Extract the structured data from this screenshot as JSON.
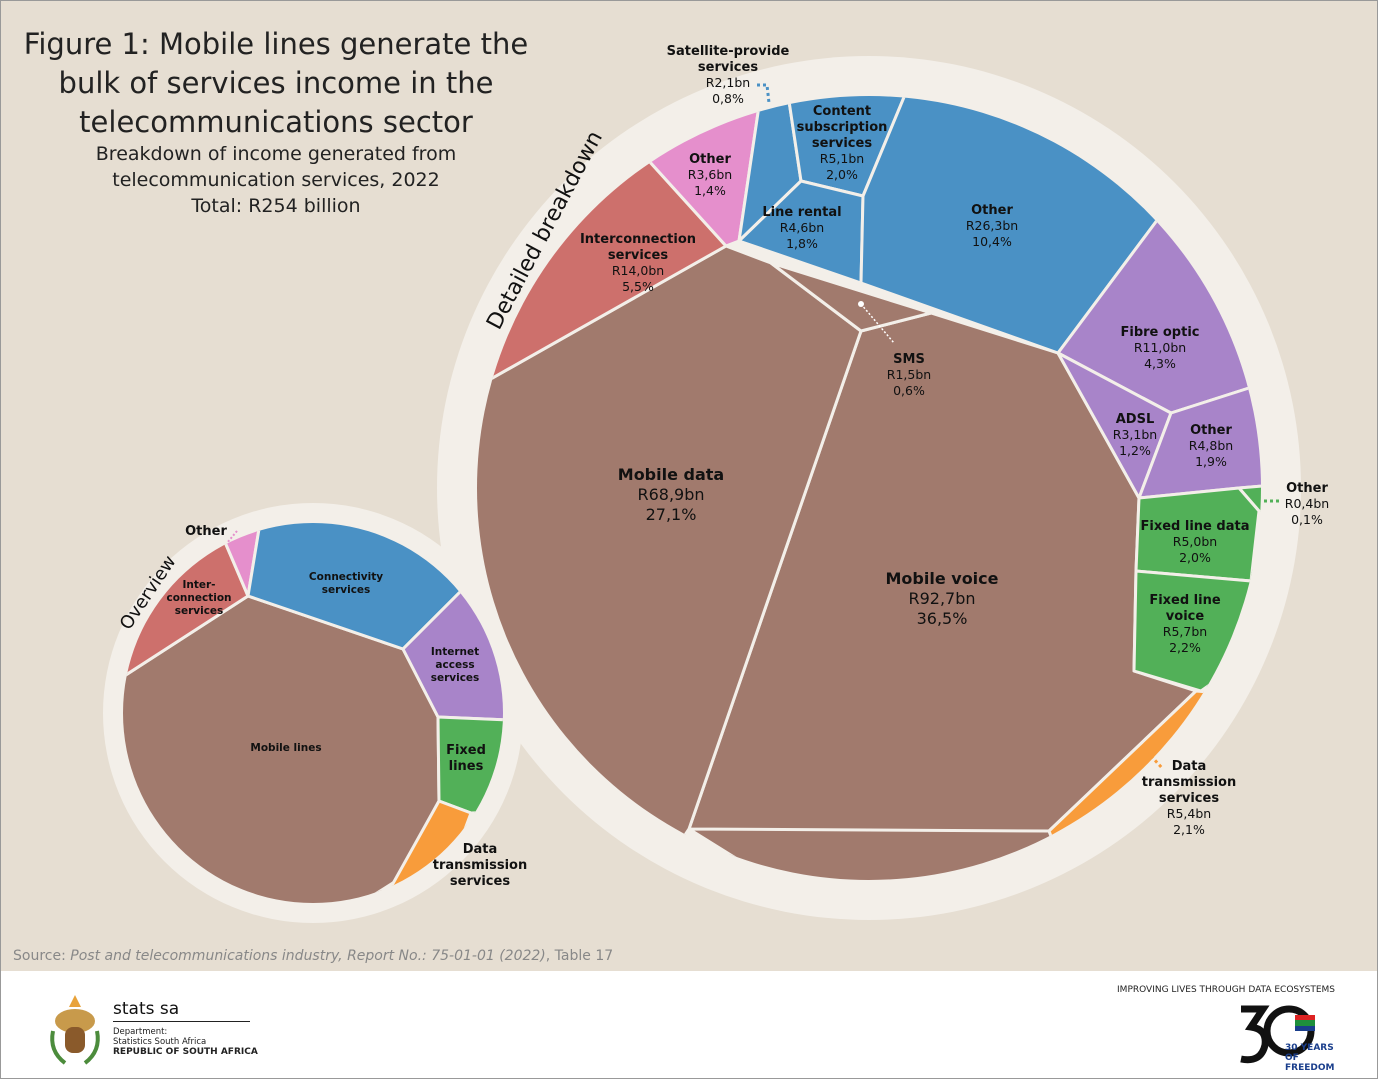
{
  "title": "Figure 1: Mobile lines generate the bulk of services income in the telecommunications sector",
  "title_lines": [
    "Figure 1: Mobile lines generate the",
    "bulk of services income in the",
    "telecommunications sector"
  ],
  "subtitle_lines": [
    "Breakdown of income generated from",
    "telecommunication services, 2022",
    "Total: R254 billion"
  ],
  "source": {
    "prefix": "Source: ",
    "italic": "Post and telecommunications industry, Report No.: 75-01-01 (2022)",
    "suffix": ", Table 17"
  },
  "footer": {
    "org": "stats sa",
    "dept1": "Department:",
    "dept2": "Statistics South Africa",
    "dept3": "REPUBLIC OF SOUTH AFRICA",
    "tagline": "IMPROVING LIVES THROUGH DATA ECOSYSTEMS",
    "years_badge": "30 YEARS OF FREEDOM"
  },
  "chart_data": {
    "type": "voronoi-treemap",
    "total": "R254 billion",
    "colors": {
      "mobile": "#A17A6D",
      "interconnection": "#CD706C",
      "other": "#E58FCC",
      "connectivity": "#4A91C5",
      "internet": "#A884C9",
      "fixed": "#52B058",
      "data_transmission": "#F89C3B"
    },
    "overview": {
      "label": "Overview",
      "cells": [
        {
          "name": "Mobile lines"
        },
        {
          "name": "Inter-connection services"
        },
        {
          "name": "Other"
        },
        {
          "name": "Connectivity services"
        },
        {
          "name": "Internet access services"
        },
        {
          "name": "Fixed lines"
        },
        {
          "name": "Data transmission services"
        }
      ]
    },
    "detailed": {
      "label": "Detailed breakdown",
      "cells": [
        {
          "name": "Mobile voice",
          "value": "R92,7bn",
          "share": "36,5%",
          "group": "mobile"
        },
        {
          "name": "Mobile data",
          "value": "R68,9bn",
          "share": "27,1%",
          "group": "mobile"
        },
        {
          "name": "SMS",
          "value": "R1,5bn",
          "share": "0,6%",
          "group": "mobile"
        },
        {
          "name": "Interconnection services",
          "value": "R14,0bn",
          "share": "5,5%",
          "group": "interconnection"
        },
        {
          "name": "Other",
          "value": "R3,6bn",
          "share": "1,4%",
          "group": "other"
        },
        {
          "name": "Satellite-provide services",
          "value": "R2,1bn",
          "share": "0,8%",
          "group": "connectivity"
        },
        {
          "name": "Content subscription services",
          "value": "R5,1bn",
          "share": "2,0%",
          "group": "connectivity"
        },
        {
          "name": "Line rental",
          "value": "R4,6bn",
          "share": "1,8%",
          "group": "connectivity"
        },
        {
          "name": "Other",
          "value": "R26,3bn",
          "share": "10,4%",
          "group": "connectivity"
        },
        {
          "name": "Fibre optic",
          "value": "R11,0bn",
          "share": "4,3%",
          "group": "internet"
        },
        {
          "name": "ADSL",
          "value": "R3,1bn",
          "share": "1,2%",
          "group": "internet"
        },
        {
          "name": "Other",
          "value": "R4,8bn",
          "share": "1,9%",
          "group": "internet"
        },
        {
          "name": "Other",
          "value": "R0,4bn",
          "share": "0,1%",
          "group": "fixed"
        },
        {
          "name": "Fixed line data",
          "value": "R5,0bn",
          "share": "2,0%",
          "group": "fixed"
        },
        {
          "name": "Fixed line voice",
          "value": "R5,7bn",
          "share": "2,2%",
          "group": "fixed"
        },
        {
          "name": "Data transmission services",
          "value": "R5,4bn",
          "share": "2,1%",
          "group": "data_transmission"
        }
      ]
    }
  }
}
